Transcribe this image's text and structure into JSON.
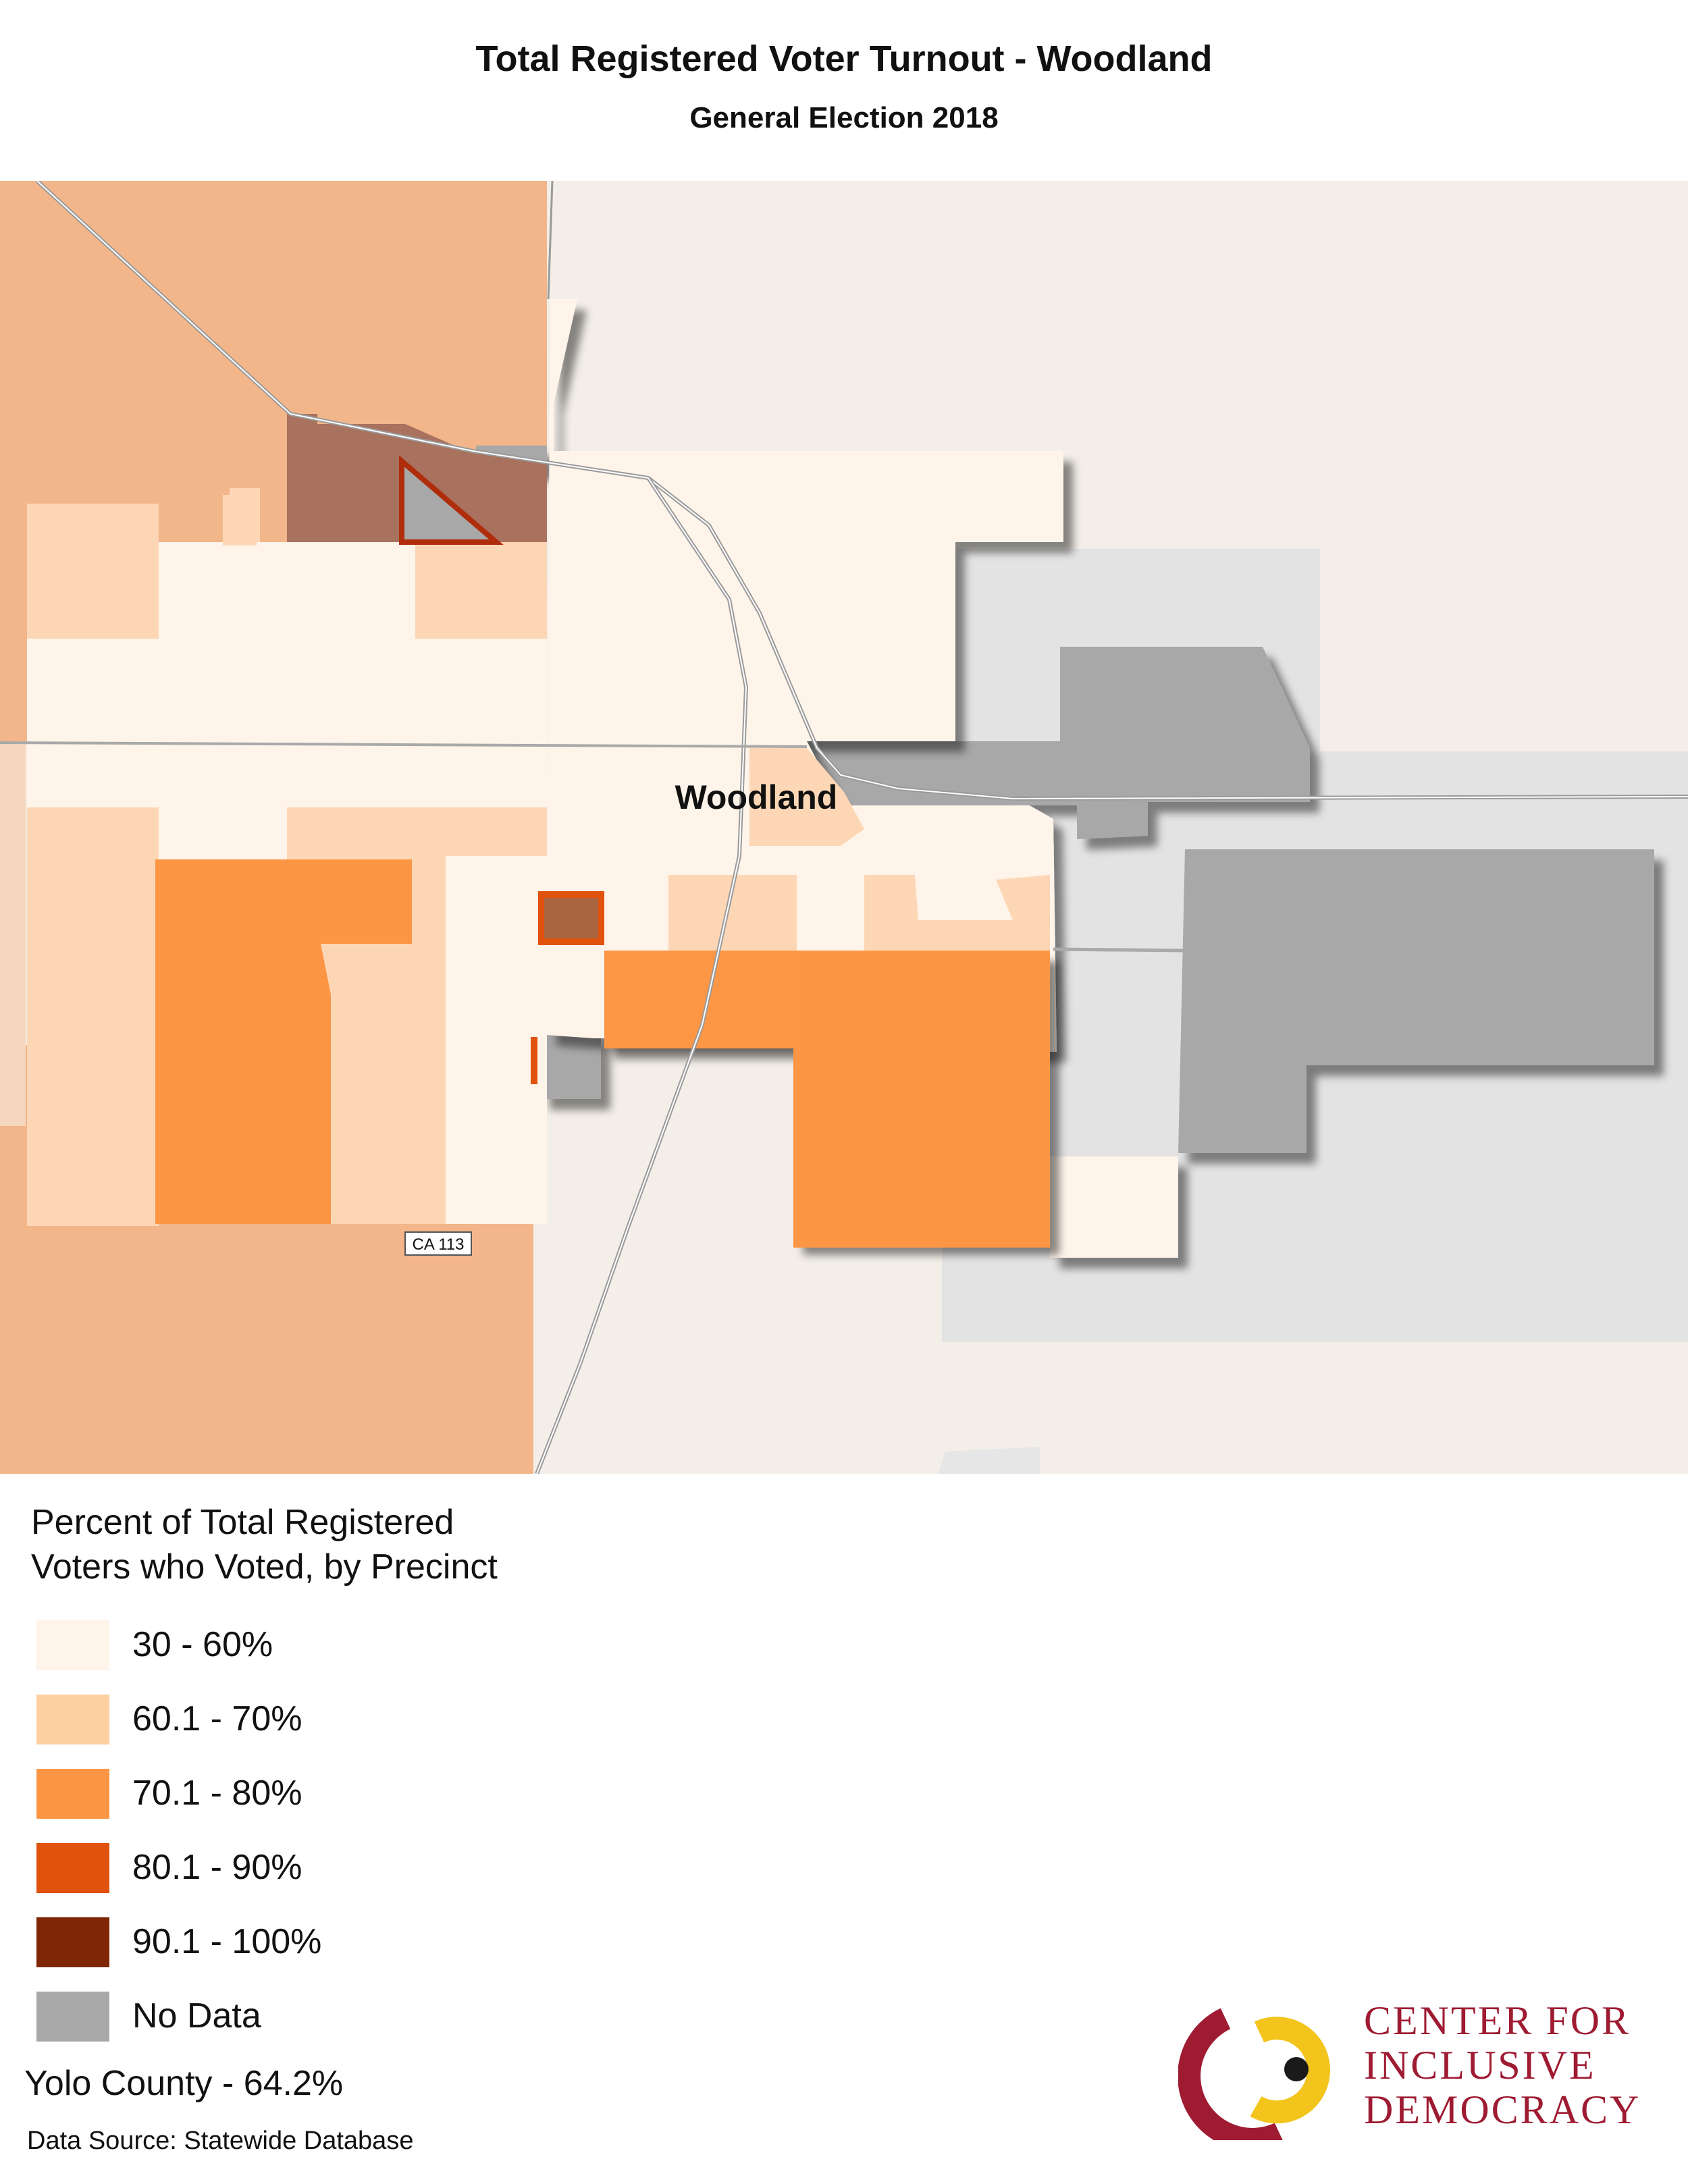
{
  "header": {
    "title": "Total Registered Voter Turnout - Woodland",
    "subtitle": "General Election 2018"
  },
  "map": {
    "place_label": "Woodland",
    "road_label": "CA 113",
    "colors": {
      "background": "#f3eee8",
      "outside_gray": "#e3e3e3",
      "road": "#a9a9a9"
    }
  },
  "legend": {
    "title_line1": "Percent of Total Registered",
    "title_line2": "Voters who Voted, by Precinct",
    "items": [
      {
        "label": "30 - 60%",
        "color": "#fef4ea"
      },
      {
        "label": "60.1 - 70%",
        "color": "#fdd0a2"
      },
      {
        "label": "70.1 - 80%",
        "color": "#fd9644"
      },
      {
        "label": "80.1 - 90%",
        "color": "#e1520c"
      },
      {
        "label": "90.1 - 100%",
        "color": "#7f2704"
      },
      {
        "label": "No Data",
        "color": "#a8a8a8"
      }
    ]
  },
  "county_stat": "Yolo County - 64.2%",
  "source": "Data Source: Statewide Database",
  "logo": {
    "line1": "CENTER FOR",
    "line2": "INCLUSIVE",
    "line3": "DEMOCRACY",
    "colors": {
      "red": "#9e1b32",
      "yellow": "#f2c41c",
      "dot": "#1a1a1a"
    }
  }
}
